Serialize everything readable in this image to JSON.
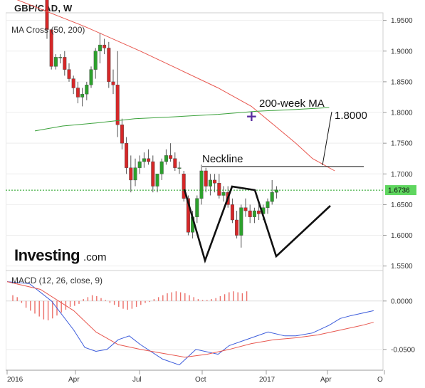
{
  "chart_data": {
    "type": "candlestick",
    "title": "GBP/CAD, W",
    "indicators": {
      "ma_label": "MA Cross (50, 200)",
      "macd_label": "MACD (12, 26, close, 9)"
    },
    "y_ticks": [
      "1.9500",
      "1.9000",
      "1.8500",
      "1.8000",
      "1.7500",
      "1.7000",
      "1.6500",
      "1.6000",
      "1.5500"
    ],
    "ylim": [
      1.545,
      1.96
    ],
    "current_price": {
      "value": 1.6736,
      "label": "1.6736"
    },
    "macd_ticks": [
      "0.0000",
      "-0.0500"
    ],
    "macd_ylim": [
      -0.07,
      0.03
    ],
    "x_ticks": [
      "2016",
      "Apr",
      "Jul",
      "Oct",
      "2017",
      "Apr",
      "O"
    ],
    "annotations": {
      "ma_label": "200-week MA",
      "target_label": "1.8000",
      "neckline_label": "Neckline"
    },
    "logo": {
      "main": "Investing",
      "sub": ".com"
    },
    "colors": {
      "up": "#2ca02c",
      "down": "#d62728",
      "ma_fast": "#e8574f",
      "ma_slow": "#3aa13a",
      "macd": "#3b5bdb",
      "signal": "#e8574f",
      "price_line": "#1a9e1a"
    },
    "candles": [
      [
        1.99,
        1.99,
        1.92,
        1.935
      ],
      [
        1.935,
        1.935,
        1.87,
        1.875
      ],
      [
        1.875,
        1.895,
        1.87,
        1.89
      ],
      [
        1.89,
        1.895,
        1.88,
        1.89
      ],
      [
        1.89,
        1.9,
        1.86,
        1.87
      ],
      [
        1.87,
        1.88,
        1.85,
        1.855
      ],
      [
        1.855,
        1.86,
        1.83,
        1.84
      ],
      [
        1.84,
        1.85,
        1.815,
        1.825
      ],
      [
        1.825,
        1.84,
        1.81,
        1.83
      ],
      [
        1.83,
        1.85,
        1.82,
        1.845
      ],
      [
        1.845,
        1.875,
        1.84,
        1.87
      ],
      [
        1.87,
        1.905,
        1.855,
        1.9
      ],
      [
        1.9,
        1.93,
        1.88,
        1.91
      ],
      [
        1.91,
        1.92,
        1.895,
        1.905
      ],
      [
        1.905,
        1.915,
        1.84,
        1.85
      ],
      [
        1.85,
        1.87,
        1.83,
        1.845
      ],
      [
        1.845,
        1.9,
        1.76,
        1.78
      ],
      [
        1.78,
        1.79,
        1.74,
        1.75
      ],
      [
        1.75,
        1.76,
        1.7,
        1.71
      ],
      [
        1.71,
        1.73,
        1.67,
        1.69
      ],
      [
        1.69,
        1.725,
        1.68,
        1.71
      ],
      [
        1.71,
        1.73,
        1.7,
        1.72
      ],
      [
        1.72,
        1.735,
        1.71,
        1.725
      ],
      [
        1.725,
        1.74,
        1.715,
        1.72
      ],
      [
        1.72,
        1.73,
        1.67,
        1.68
      ],
      [
        1.68,
        1.7,
        1.67,
        1.7
      ],
      [
        1.7,
        1.725,
        1.69,
        1.72
      ],
      [
        1.72,
        1.74,
        1.715,
        1.73
      ],
      [
        1.73,
        1.75,
        1.72,
        1.725
      ],
      [
        1.725,
        1.735,
        1.705,
        1.71
      ],
      [
        1.71,
        1.72,
        1.7,
        1.71
      ],
      [
        1.7,
        1.705,
        1.655,
        1.66
      ],
      [
        1.66,
        1.665,
        1.6,
        1.605
      ],
      [
        1.605,
        1.64,
        1.595,
        1.63
      ],
      [
        1.63,
        1.665,
        1.62,
        1.66
      ],
      [
        1.66,
        1.715,
        1.65,
        1.705
      ],
      [
        1.705,
        1.71,
        1.67,
        1.68
      ],
      [
        1.68,
        1.7,
        1.665,
        1.69
      ],
      [
        1.69,
        1.7,
        1.67,
        1.685
      ],
      [
        1.685,
        1.7,
        1.66,
        1.665
      ],
      [
        1.665,
        1.68,
        1.655,
        1.67
      ],
      [
        1.67,
        1.68,
        1.645,
        1.65
      ],
      [
        1.65,
        1.66,
        1.62,
        1.625
      ],
      [
        1.625,
        1.64,
        1.595,
        1.6
      ],
      [
        1.6,
        1.65,
        1.58,
        1.645
      ],
      [
        1.645,
        1.66,
        1.63,
        1.64
      ],
      [
        1.64,
        1.65,
        1.62,
        1.63
      ],
      [
        1.63,
        1.645,
        1.62,
        1.64
      ],
      [
        1.64,
        1.65,
        1.625,
        1.635
      ],
      [
        1.635,
        1.65,
        1.625,
        1.645
      ],
      [
        1.645,
        1.66,
        1.635,
        1.655
      ],
      [
        1.655,
        1.69,
        1.65,
        1.67
      ],
      [
        1.67,
        1.68,
        1.66,
        1.674
      ]
    ],
    "ma_fast": [
      [
        0,
        1.99
      ],
      [
        14,
        1.94
      ],
      [
        24,
        1.9
      ],
      [
        31,
        1.87
      ],
      [
        38,
        1.84
      ],
      [
        44,
        1.81
      ],
      [
        48,
        1.78
      ],
      [
        52,
        1.75
      ],
      [
        55,
        1.725
      ],
      [
        59,
        1.705
      ]
    ],
    "ma_slow": [
      [
        5,
        1.77
      ],
      [
        10,
        1.778
      ],
      [
        16,
        1.783
      ],
      [
        23,
        1.79
      ],
      [
        30,
        1.793
      ],
      [
        38,
        1.797
      ],
      [
        45,
        1.802
      ],
      [
        52,
        1.805
      ],
      [
        58,
        1.808
      ]
    ],
    "macd_line": [
      [
        0,
        0.02
      ],
      [
        4,
        0.018
      ],
      [
        8,
        0.0
      ],
      [
        12,
        -0.03
      ],
      [
        14,
        -0.048
      ],
      [
        16,
        -0.052
      ],
      [
        18,
        -0.05
      ],
      [
        20,
        -0.04
      ],
      [
        22,
        -0.036
      ],
      [
        24,
        -0.045
      ],
      [
        28,
        -0.06
      ],
      [
        31,
        -0.066
      ],
      [
        34,
        -0.05
      ],
      [
        38,
        -0.055
      ],
      [
        40,
        -0.046
      ],
      [
        44,
        -0.038
      ],
      [
        47,
        -0.032
      ],
      [
        50,
        -0.036
      ],
      [
        52,
        -0.036
      ],
      [
        55,
        -0.033
      ],
      [
        58,
        -0.025
      ],
      [
        60,
        -0.018
      ],
      [
        62,
        -0.015
      ],
      [
        66,
        -0.01
      ]
    ],
    "signal_line": [
      [
        0,
        0.02
      ],
      [
        6,
        0.012
      ],
      [
        12,
        -0.01
      ],
      [
        16,
        -0.032
      ],
      [
        20,
        -0.045
      ],
      [
        24,
        -0.05
      ],
      [
        28,
        -0.054
      ],
      [
        32,
        -0.058
      ],
      [
        36,
        -0.055
      ],
      [
        40,
        -0.05
      ],
      [
        44,
        -0.044
      ],
      [
        48,
        -0.04
      ],
      [
        52,
        -0.038
      ],
      [
        56,
        -0.035
      ],
      [
        60,
        -0.03
      ],
      [
        64,
        -0.025
      ],
      [
        66,
        -0.022
      ]
    ],
    "macd_histogram": [
      0.006,
      0.004,
      -0.002,
      -0.007,
      -0.01,
      -0.013,
      -0.016,
      -0.019,
      -0.02,
      -0.018,
      -0.015,
      -0.012,
      -0.009,
      -0.006,
      -0.005,
      -0.003,
      0.002,
      0.004,
      0.006,
      0.005,
      0.003,
      0.001,
      -0.002,
      -0.004,
      -0.006,
      -0.008,
      -0.009,
      -0.008,
      -0.006,
      -0.004,
      -0.002,
      -0.001,
      0.002,
      0.004,
      0.006,
      0.008,
      0.009,
      0.01,
      0.009,
      0.008,
      0.006,
      0.004,
      0.002,
      0.001,
      0.001,
      0.002,
      0.003,
      0.005,
      0.007,
      0.009,
      0.01,
      0.009,
      0.008,
      0.01
    ]
  }
}
